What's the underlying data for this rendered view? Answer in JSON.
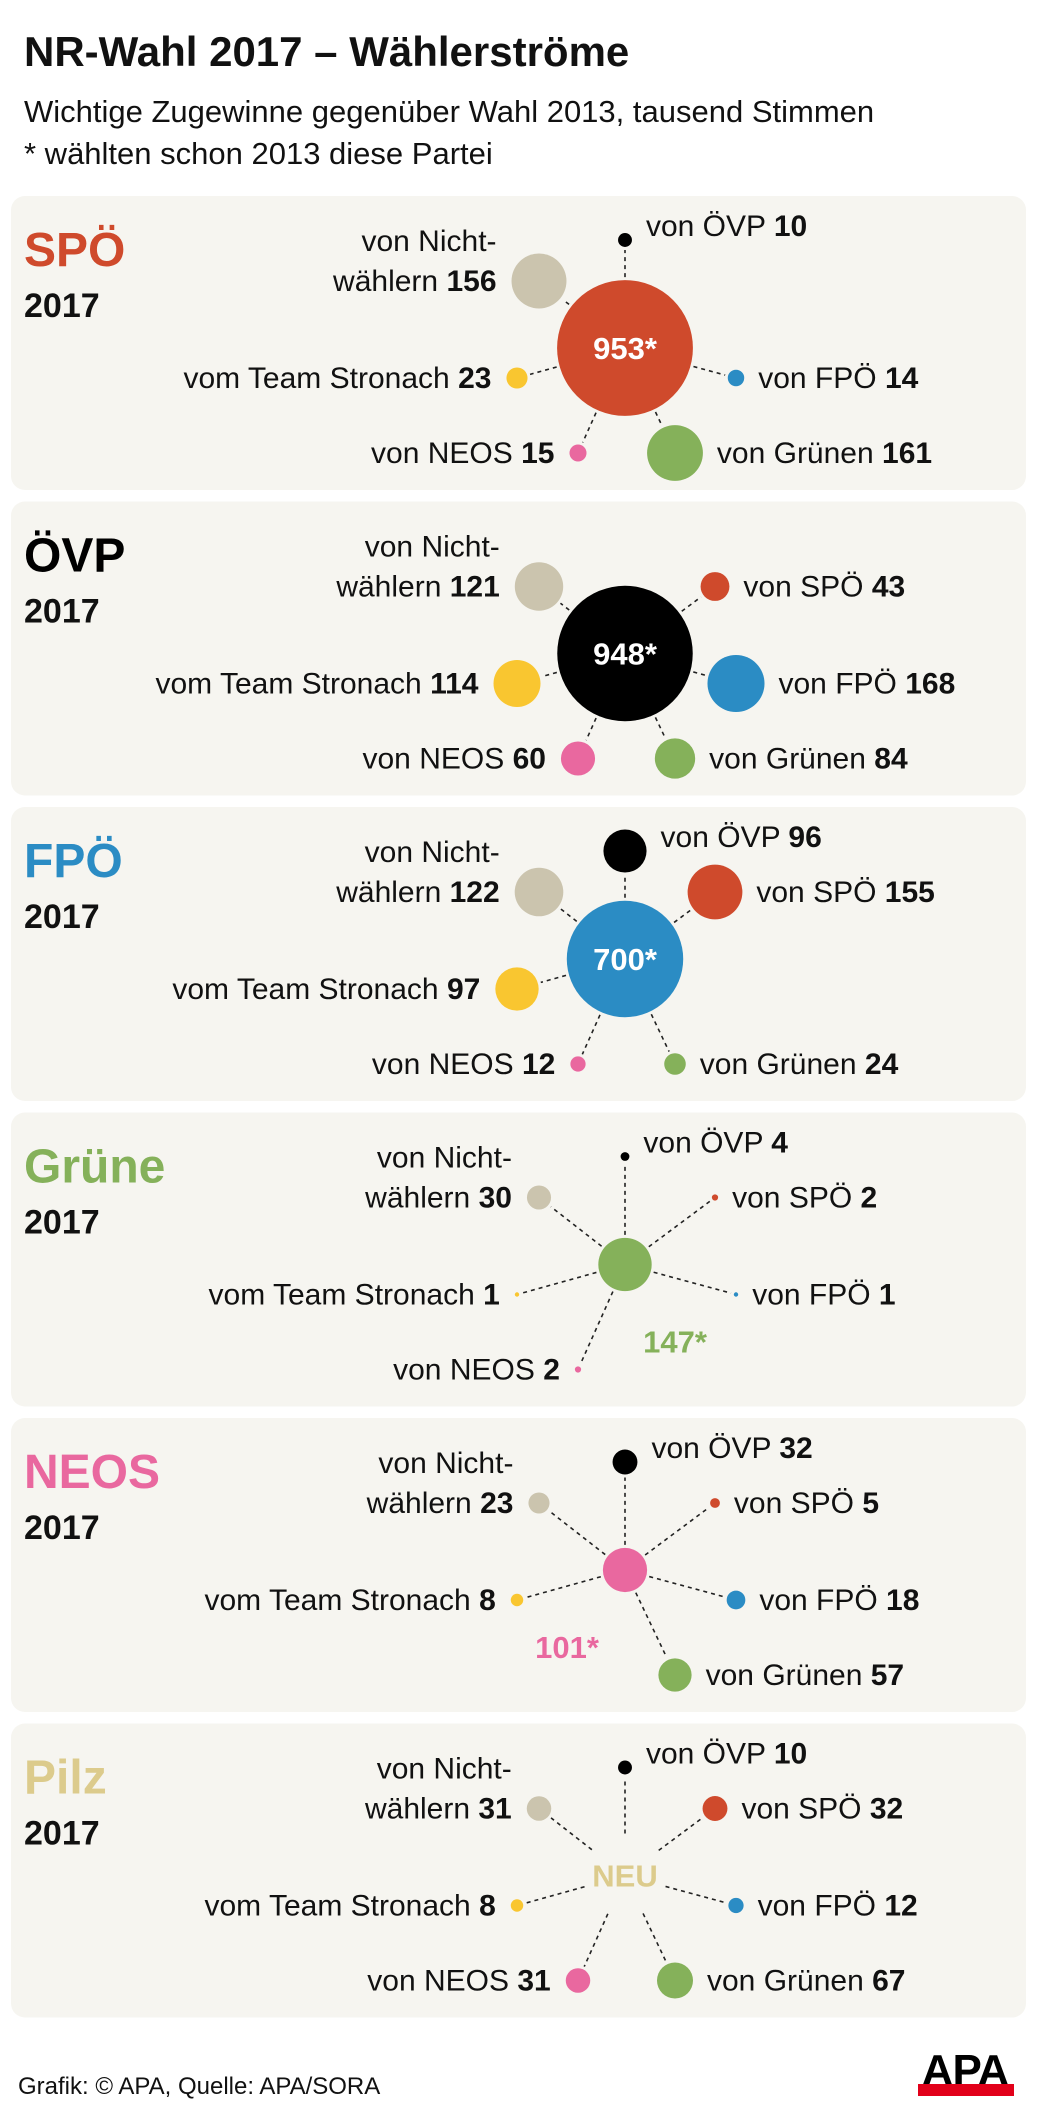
{
  "title": "NR-Wahl 2017 – Wählerströme",
  "subtitle": "Wichtige Zugewinne gegenüber Wahl 2013, tausend Stimmen",
  "note": "* wählten schon 2013 diese Partei",
  "footer": {
    "credit": "Grafik: © APA, Quelle: APA/SORA"
  },
  "logo": {
    "text": "APA",
    "colors": {
      "text": "#000000",
      "bar": "#e2001a"
    }
  },
  "colors": {
    "panel_bg": "#f6f5f0",
    "SPÖ": "#cf4a2c",
    "ÖVP": "#000000",
    "FPÖ": "#2b8cc4",
    "Grüne": "#85b15a",
    "NEOS": "#e9689f",
    "Pilz": "#dccb8c",
    "Team Stronach": "#f9c630",
    "Nichtwähler": "#cbc4ae"
  },
  "chart_data": {
    "type": "bubble-flow",
    "unit": "tausend Stimmen",
    "panels": [
      {
        "party": "SPÖ",
        "year": "2017",
        "retained": 953,
        "center_label": "953*",
        "flows": [
          {
            "source": "Nichtwähler",
            "label": [
              "von Nicht-",
              "wählern"
            ],
            "value": 156
          },
          {
            "source": "ÖVP",
            "label": [
              "von ÖVP"
            ],
            "value": 10
          },
          {
            "source": "Team Stronach",
            "label": [
              "vom Team Stronach"
            ],
            "value": 23
          },
          {
            "source": "FPÖ",
            "label": [
              "von FPÖ"
            ],
            "value": 14
          },
          {
            "source": "NEOS",
            "label": [
              "von NEOS"
            ],
            "value": 15
          },
          {
            "source": "Grüne",
            "label": [
              "von Grünen"
            ],
            "value": 161
          }
        ]
      },
      {
        "party": "ÖVP",
        "year": "2017",
        "retained": 948,
        "center_label": "948*",
        "flows": [
          {
            "source": "Nichtwähler",
            "label": [
              "von Nicht-",
              "wählern"
            ],
            "value": 121
          },
          {
            "source": "SPÖ",
            "label": [
              "von SPÖ"
            ],
            "value": 43
          },
          {
            "source": "Team Stronach",
            "label": [
              "vom Team Stronach"
            ],
            "value": 114
          },
          {
            "source": "FPÖ",
            "label": [
              "von FPÖ"
            ],
            "value": 168
          },
          {
            "source": "NEOS",
            "label": [
              "von NEOS"
            ],
            "value": 60
          },
          {
            "source": "Grüne",
            "label": [
              "von Grünen"
            ],
            "value": 84
          }
        ]
      },
      {
        "party": "FPÖ",
        "year": "2017",
        "retained": 700,
        "center_label": "700*",
        "flows": [
          {
            "source": "Nichtwähler",
            "label": [
              "von Nicht-",
              "wählern"
            ],
            "value": 122
          },
          {
            "source": "ÖVP",
            "label": [
              "von ÖVP"
            ],
            "value": 96
          },
          {
            "source": "SPÖ",
            "label": [
              "von SPÖ"
            ],
            "value": 155
          },
          {
            "source": "Team Stronach",
            "label": [
              "vom Team Stronach"
            ],
            "value": 97
          },
          {
            "source": "NEOS",
            "label": [
              "von NEOS"
            ],
            "value": 12
          },
          {
            "source": "Grüne",
            "label": [
              "von Grünen"
            ],
            "value": 24
          }
        ]
      },
      {
        "party": "Grüne",
        "year": "2017",
        "retained": 147,
        "center_label": "147*",
        "flows": [
          {
            "source": "Nichtwähler",
            "label": [
              "von Nicht-",
              "wählern"
            ],
            "value": 30
          },
          {
            "source": "ÖVP",
            "label": [
              "von ÖVP"
            ],
            "value": 4
          },
          {
            "source": "SPÖ",
            "label": [
              "von SPÖ"
            ],
            "value": 2
          },
          {
            "source": "Team Stronach",
            "label": [
              "vom Team Stronach"
            ],
            "value": 1
          },
          {
            "source": "FPÖ",
            "label": [
              "von FPÖ"
            ],
            "value": 1
          },
          {
            "source": "NEOS",
            "label": [
              "von NEOS"
            ],
            "value": 2
          }
        ]
      },
      {
        "party": "NEOS",
        "year": "2017",
        "retained": 101,
        "center_label": "101*",
        "flows": [
          {
            "source": "Nichtwähler",
            "label": [
              "von Nicht-",
              "wählern"
            ],
            "value": 23
          },
          {
            "source": "ÖVP",
            "label": [
              "von ÖVP"
            ],
            "value": 32
          },
          {
            "source": "SPÖ",
            "label": [
              "von SPÖ"
            ],
            "value": 5
          },
          {
            "source": "Team Stronach",
            "label": [
              "vom Team Stronach"
            ],
            "value": 8
          },
          {
            "source": "FPÖ",
            "label": [
              "von FPÖ"
            ],
            "value": 18
          },
          {
            "source": "Grüne",
            "label": [
              "von Grünen"
            ],
            "value": 57
          }
        ]
      },
      {
        "party": "Pilz",
        "year": "2017",
        "retained": null,
        "center_label": "NEU",
        "flows": [
          {
            "source": "Nichtwähler",
            "label": [
              "von Nicht-",
              "wählern"
            ],
            "value": 31
          },
          {
            "source": "ÖVP",
            "label": [
              "von ÖVP"
            ],
            "value": 10
          },
          {
            "source": "SPÖ",
            "label": [
              "von SPÖ"
            ],
            "value": 32
          },
          {
            "source": "Team Stronach",
            "label": [
              "vom Team Stronach"
            ],
            "value": 8
          },
          {
            "source": "FPÖ",
            "label": [
              "von FPÖ"
            ],
            "value": 12
          },
          {
            "source": "NEOS",
            "label": [
              "von NEOS"
            ],
            "value": 31
          },
          {
            "source": "Grüne",
            "label": [
              "von Grünen"
            ],
            "value": 67
          }
        ]
      }
    ]
  }
}
